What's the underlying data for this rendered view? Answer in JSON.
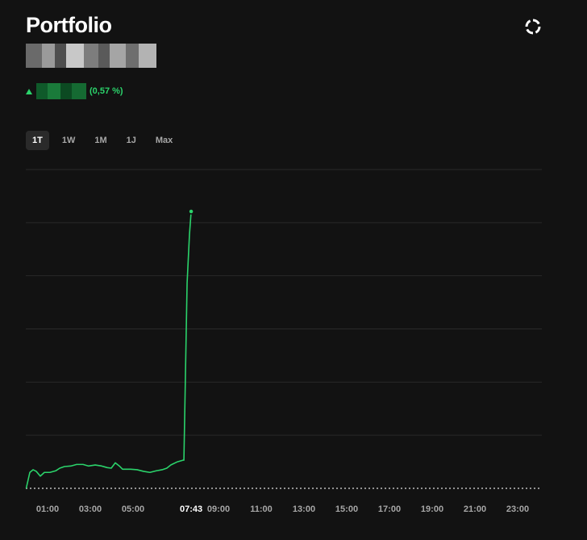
{
  "header": {
    "title": "Portfolio",
    "change": "(0,57 %)"
  },
  "ranges": [
    "1T",
    "1W",
    "1M",
    "1J",
    "Max"
  ],
  "chart_data": {
    "type": "line",
    "color": "#2bd36b",
    "x": [
      0,
      0.17,
      0.32,
      0.47,
      0.66,
      0.85,
      1.11,
      1.38,
      1.57,
      1.79,
      2.09,
      2.36,
      2.66,
      2.92,
      3.23,
      3.53,
      3.79,
      3.98,
      4.17,
      4.36,
      4.51,
      4.89,
      5.19,
      5.49,
      5.79,
      6.09,
      6.36,
      6.58,
      6.77,
      7.08,
      7.34,
      7.38,
      7.53,
      7.64,
      7.72
    ],
    "values": [
      0,
      0.3,
      0.35,
      0.32,
      0.23,
      0.3,
      0.3,
      0.33,
      0.38,
      0.41,
      0.42,
      0.45,
      0.45,
      0.42,
      0.44,
      0.42,
      0.39,
      0.38,
      0.48,
      0.42,
      0.36,
      0.36,
      0.35,
      0.32,
      0.3,
      0.33,
      0.35,
      0.38,
      0.44,
      0.5,
      0.53,
      0.53,
      3.86,
      4.77,
      5.21
    ],
    "xlim": [
      0,
      24
    ],
    "xticks": [
      {
        "value": 1,
        "label": "01:00"
      },
      {
        "value": 3,
        "label": "03:00"
      },
      {
        "value": 5,
        "label": "05:00"
      },
      {
        "value": 9,
        "label": "09:00"
      },
      {
        "value": 11,
        "label": "11:00"
      },
      {
        "value": 13,
        "label": "13:00"
      },
      {
        "value": 15,
        "label": "15:00"
      },
      {
        "value": 17,
        "label": "17:00"
      },
      {
        "value": 19,
        "label": "19:00"
      },
      {
        "value": 21,
        "label": "21:00"
      },
      {
        "value": 23,
        "label": "23:00"
      }
    ],
    "cursor": {
      "value": 7.72,
      "label": "07:43"
    },
    "ylim": [
      0,
      6
    ],
    "yticks": [
      0,
      1,
      2,
      3,
      4,
      5,
      6
    ],
    "grid": true
  }
}
